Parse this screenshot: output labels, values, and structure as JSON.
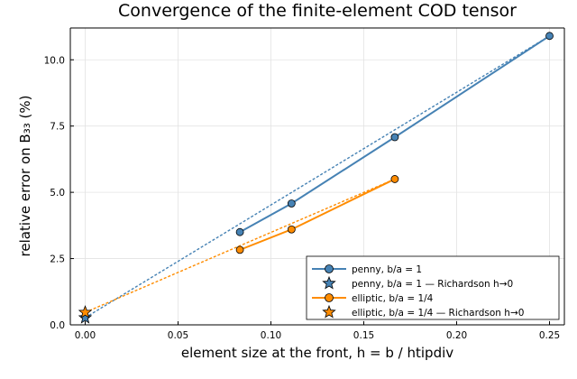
{
  "chart_data": {
    "type": "line",
    "title": "Convergence of the finite-element COD tensor",
    "xlabel": "element size at the front,  h = b / htipdiv",
    "ylabel": "relative error on B₃₃  (%)",
    "xlim": [
      -0.008,
      0.258
    ],
    "ylim": [
      0,
      11.2
    ],
    "xticks": [
      0.0,
      0.05,
      0.1,
      0.15,
      0.2,
      0.25
    ],
    "xtick_labels": [
      "0.00",
      "0.05",
      "0.10",
      "0.15",
      "0.20",
      "0.25"
    ],
    "yticks": [
      0.0,
      2.5,
      5.0,
      7.5,
      10.0
    ],
    "ytick_labels": [
      "0.0",
      "2.5",
      "5.0",
      "7.5",
      "10.0"
    ],
    "grid": true,
    "legend_position": "bottom-right",
    "series": [
      {
        "name": "penny, b/a = 1",
        "color": "#4682b4",
        "marker": "circle",
        "x": [
          0.0833,
          0.1111,
          0.1667,
          0.25
        ],
        "y": [
          3.5,
          4.58,
          7.08,
          10.9
        ]
      },
      {
        "name": "penny, b/a = 1 — Richardson h→0",
        "color": "#4682b4",
        "marker": "star",
        "x": [
          0.0
        ],
        "y": [
          0.27
        ],
        "fit_line": {
          "x": [
            0.0,
            0.25
          ],
          "y": [
            0.27,
            10.9
          ]
        }
      },
      {
        "name": "elliptic, b/a = 1/4",
        "color": "#ff8c00",
        "marker": "circle",
        "x": [
          0.0833,
          0.1111,
          0.1667
        ],
        "y": [
          2.83,
          3.6,
          5.5
        ]
      },
      {
        "name": "elliptic, b/a = 1/4 — Richardson h→0",
        "color": "#ff8c00",
        "marker": "star",
        "x": [
          0.0
        ],
        "y": [
          0.47
        ],
        "fit_line": {
          "x": [
            0.0,
            0.1667
          ],
          "y": [
            0.47,
            5.5
          ]
        }
      }
    ]
  }
}
